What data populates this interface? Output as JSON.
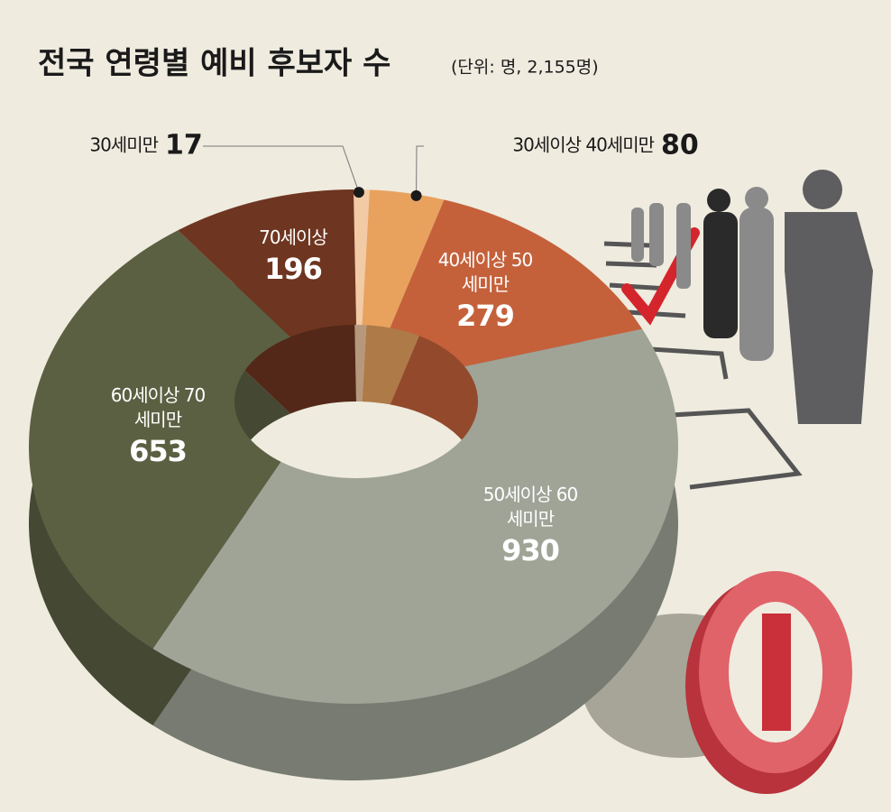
{
  "chart_data": {
    "type": "pie",
    "donut": true,
    "title": "전국 연령별 예비 후보자 수",
    "subtitle": "(단위: 명, 2,155명)",
    "categories": [
      "30세미만",
      "30세이상 40세미만",
      "40세이상 50세미만",
      "50세이상 60세미만",
      "60세이상 70세미만",
      "70세이상"
    ],
    "values": [
      17,
      80,
      279,
      930,
      653,
      196
    ],
    "colors": [
      "#f2cba6",
      "#e8a25e",
      "#c4613b",
      "#9fa497",
      "#5c6042",
      "#6e3520"
    ]
  }
}
